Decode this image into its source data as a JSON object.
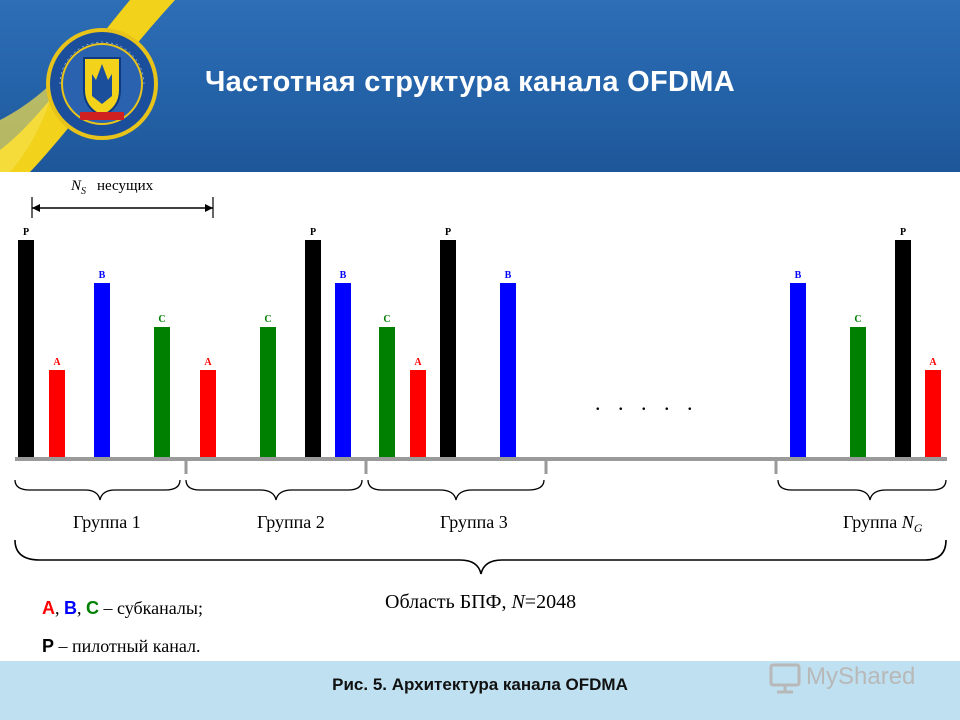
{
  "header": {
    "title": "Частотная структура канала OFDMA",
    "emblem_text": "УКРАЇНСЬКИЙ ДЕРЖАВНИЙ ЦЕНТР РАДІОЧАСТОТ"
  },
  "diagram": {
    "ns_symbol": "N",
    "ns_subscript": "S",
    "ns_label": "несущих",
    "bar_letters": {
      "pilot": "P",
      "a": "A",
      "b": "B",
      "c": "C"
    },
    "groups": [
      {
        "label": "Группа 1"
      },
      {
        "label": "Группа 2"
      },
      {
        "label": "Группа 3"
      },
      {
        "label": "Группа ",
        "symbol": "N",
        "subscript": "G"
      }
    ],
    "ellipsis": ". . . . .",
    "fft": {
      "label": "Область БПФ, ",
      "symbol": "N",
      "value": "=2048"
    },
    "legend": {
      "a": "A",
      "sep1": ", ",
      "b": "B",
      "sep2": ", ",
      "c": "C",
      "subchannels_text": " – субканалы;",
      "p": "P",
      "pilot_text": " – пилотный канал."
    },
    "colors": {
      "pilot": "#000000",
      "a": "#ff0000",
      "b": "#0000ff",
      "c": "#008000"
    }
  },
  "footer": {
    "caption": "Рис. 5. Архитектура канала OFDMA"
  },
  "watermark": {
    "brand": "MyShared"
  }
}
